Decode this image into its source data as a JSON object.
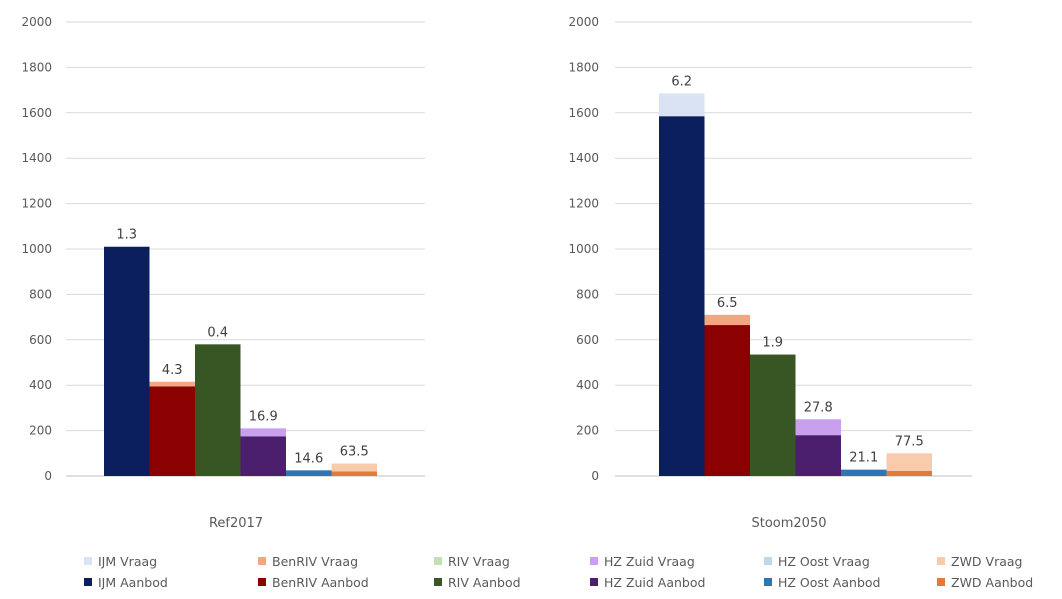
{
  "chart_data": [
    {
      "type": "bar",
      "stacked": true,
      "category": "Ref2017",
      "ylim": [
        0,
        2000
      ],
      "yticks": [
        0,
        200,
        400,
        600,
        800,
        1000,
        1200,
        1400,
        1600,
        1800,
        2000
      ],
      "grid": true,
      "groups": [
        {
          "region": "IJM",
          "aanbod": 1010,
          "vraag": 0,
          "label": "1.3"
        },
        {
          "region": "BenRIV",
          "aanbod": 395,
          "vraag": 20,
          "label": "4.3"
        },
        {
          "region": "RIV",
          "aanbod": 580,
          "vraag": 0,
          "label": "0.4"
        },
        {
          "region": "HZ Zuid",
          "aanbod": 175,
          "vraag": 35,
          "label": "16.9"
        },
        {
          "region": "HZ Oost",
          "aanbod": 25,
          "vraag": 0,
          "label": "14.6"
        },
        {
          "region": "ZWD",
          "aanbod": 20,
          "vraag": 35,
          "label": "63.5"
        }
      ]
    },
    {
      "type": "bar",
      "stacked": true,
      "category": "Stoom2050",
      "ylim": [
        0,
        2000
      ],
      "yticks": [
        0,
        200,
        400,
        600,
        800,
        1000,
        1200,
        1400,
        1600,
        1800,
        2000
      ],
      "grid": true,
      "groups": [
        {
          "region": "IJM",
          "aanbod": 1585,
          "vraag": 100,
          "label": "6.2"
        },
        {
          "region": "BenRIV",
          "aanbod": 665,
          "vraag": 45,
          "label": "6.5"
        },
        {
          "region": "RIV",
          "aanbod": 535,
          "vraag": 0,
          "label": "1.9"
        },
        {
          "region": "HZ Zuid",
          "aanbod": 180,
          "vraag": 70,
          "label": "27.8"
        },
        {
          "region": "HZ Oost",
          "aanbod": 28,
          "vraag": 0,
          "label": "21.1"
        },
        {
          "region": "ZWD",
          "aanbod": 22,
          "vraag": 78,
          "label": "77.5"
        }
      ]
    }
  ],
  "series_colors": {
    "IJM": {
      "aanbod": "#0b1f5e",
      "vraag": "#dae3f3"
    },
    "BenRIV": {
      "aanbod": "#8b0000",
      "vraag": "#f4a582"
    },
    "RIV": {
      "aanbod": "#375623",
      "vraag": "#c5e0b4"
    },
    "HZ Zuid": {
      "aanbod": "#4b1e6e",
      "vraag": "#c9a0f0"
    },
    "HZ Oost": {
      "aanbod": "#2e75b6",
      "vraag": "#bdd7ee"
    },
    "ZWD": {
      "aanbod": "#e07b39",
      "vraag": "#f8cbad"
    }
  },
  "legend": [
    {
      "name": "IJM Vraag",
      "color": "#dae3f3"
    },
    {
      "name": "BenRIV Vraag",
      "color": "#f4a582"
    },
    {
      "name": "RIV Vraag",
      "color": "#c5e0b4"
    },
    {
      "name": "HZ Zuid Vraag",
      "color": "#c9a0f0"
    },
    {
      "name": "HZ Oost Vraag",
      "color": "#bdd7ee"
    },
    {
      "name": "ZWD Vraag",
      "color": "#f8cbad"
    },
    {
      "name": "IJM Aanbod",
      "color": "#0b1f5e"
    },
    {
      "name": "BenRIV Aanbod",
      "color": "#8b0000"
    },
    {
      "name": "RIV Aanbod",
      "color": "#375623"
    },
    {
      "name": "HZ Zuid Aanbod",
      "color": "#4b1e6e"
    },
    {
      "name": "HZ Oost Aanbod",
      "color": "#2e75b6"
    },
    {
      "name": "ZWD Aanbod",
      "color": "#e07b39"
    }
  ]
}
